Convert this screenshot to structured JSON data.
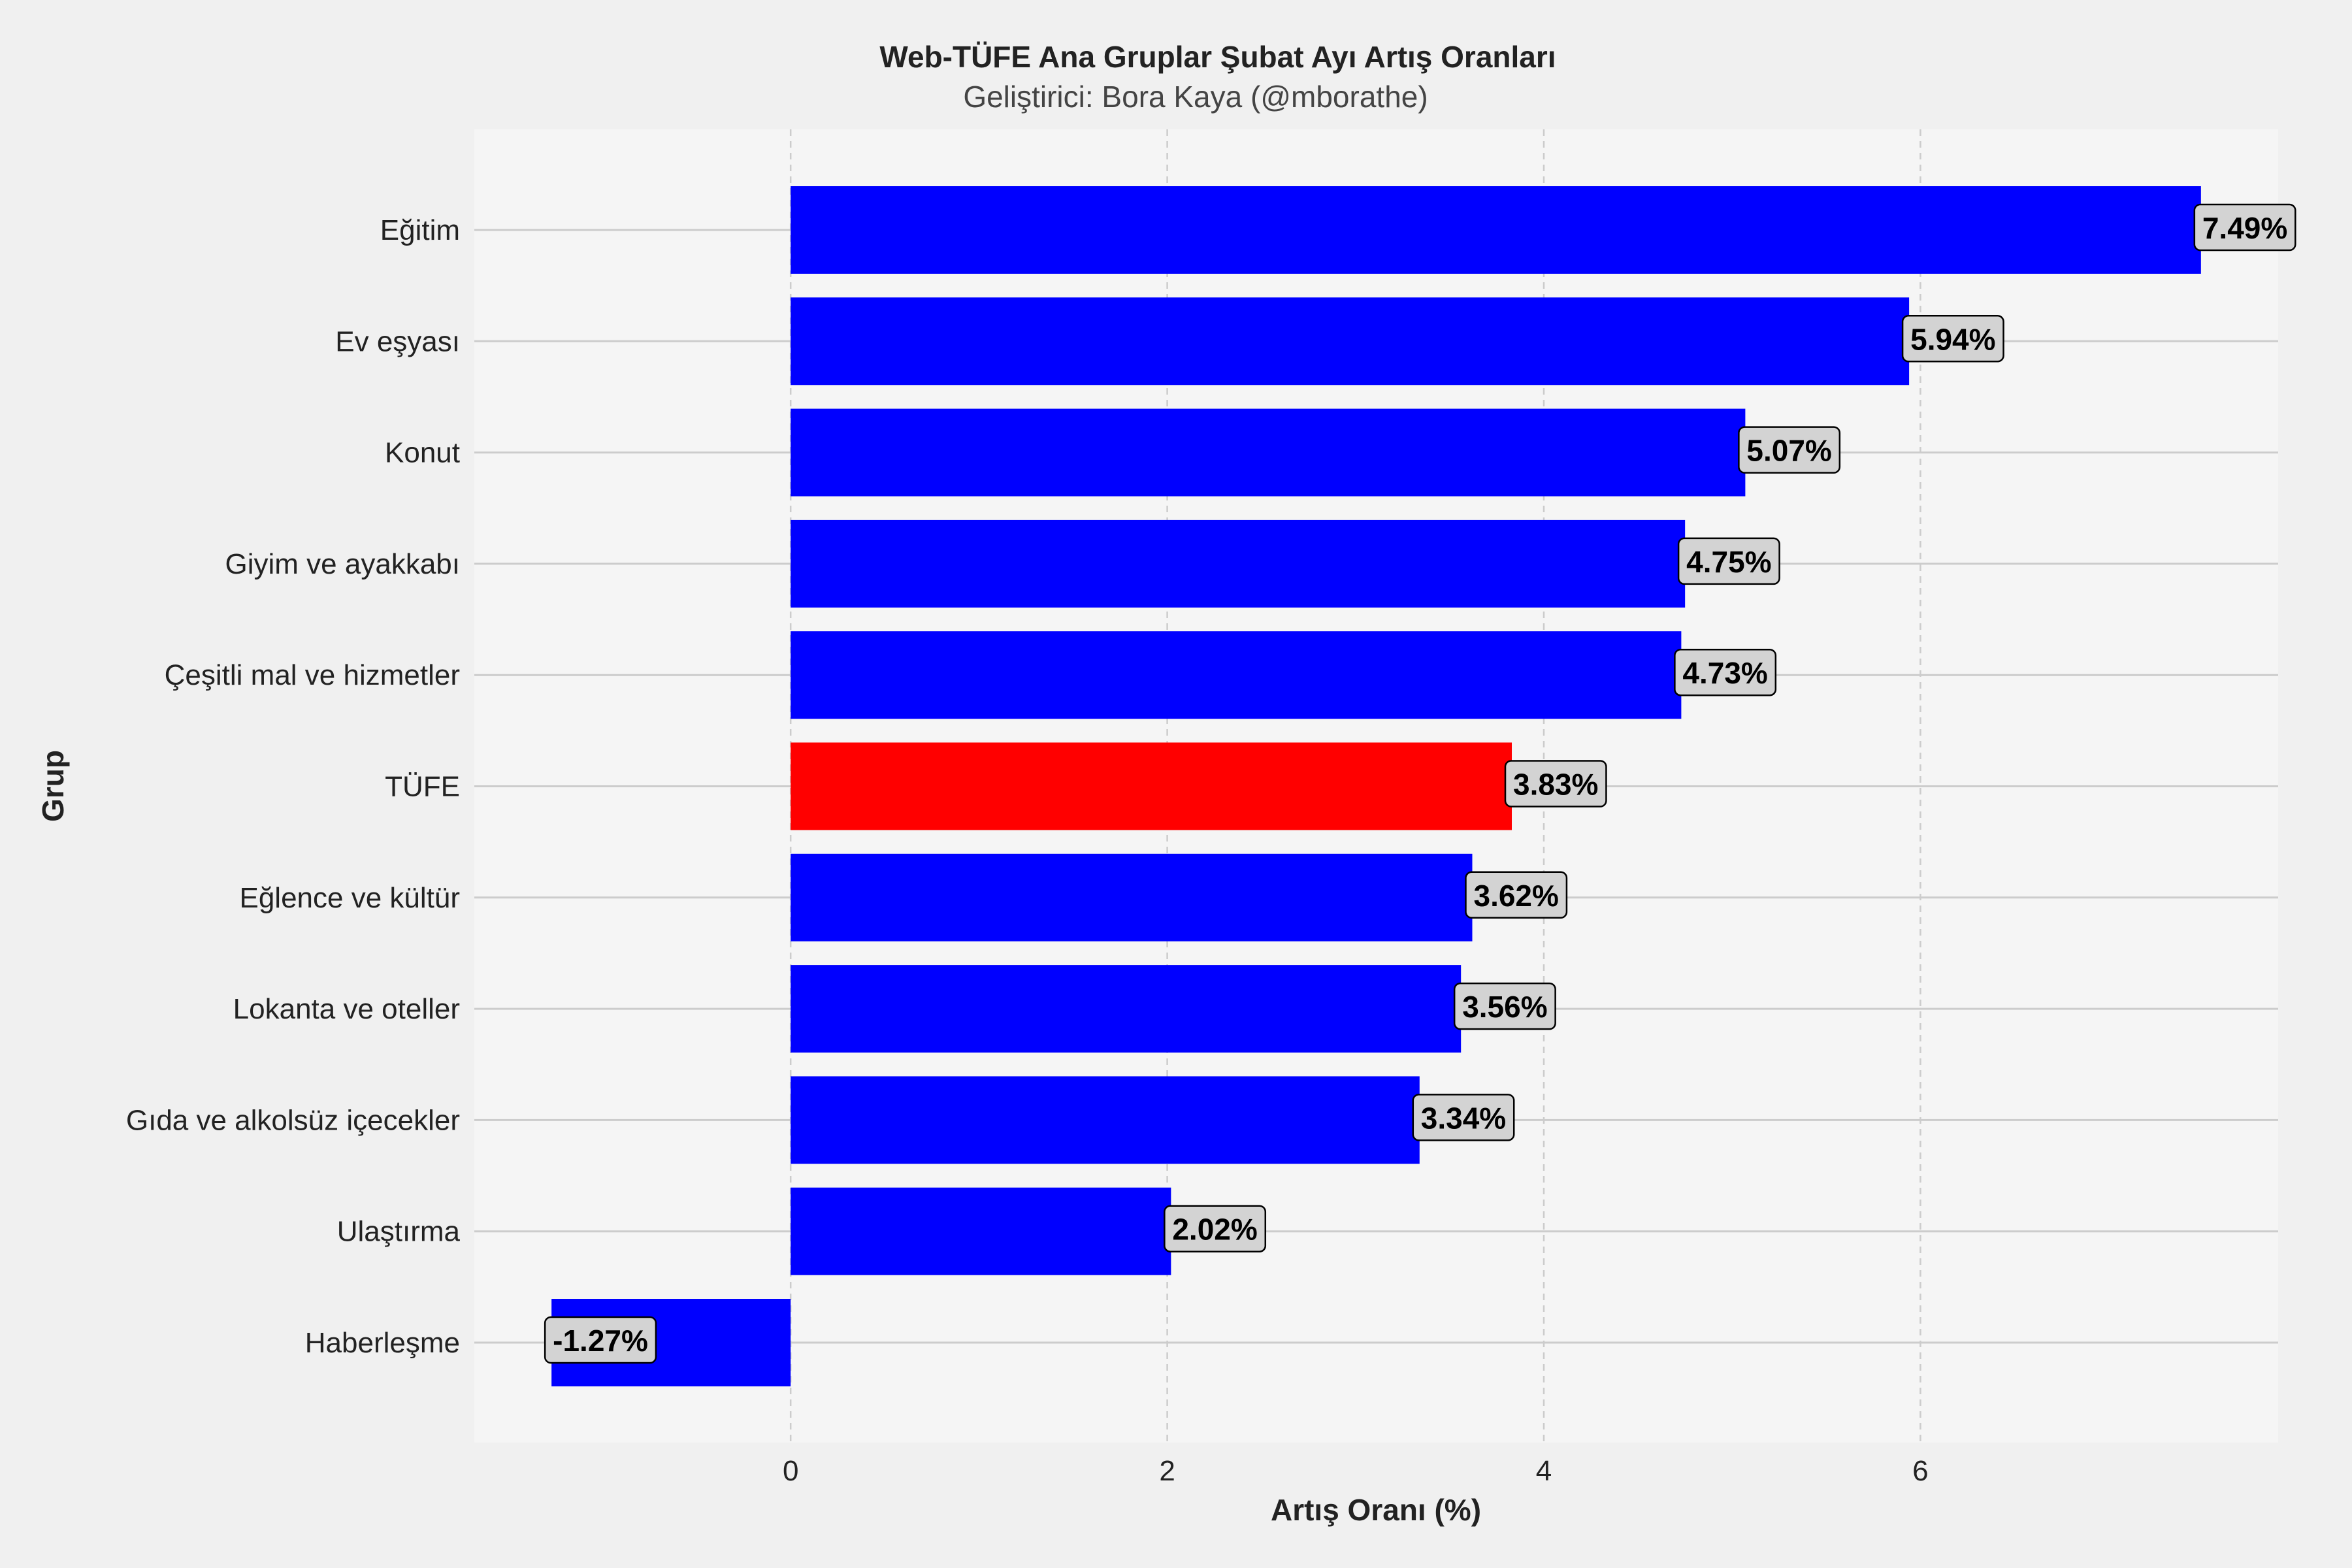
{
  "chart_data": {
    "type": "bar",
    "orientation": "horizontal",
    "title": "Web-TÜFE Ana Gruplar Şubat Ayı Artış Oranları",
    "subtitle": "Geliştirici: Bora Kaya (@mborathe)",
    "xlabel": "Artış Oranı (%)",
    "ylabel": "Grup",
    "xlim": [
      -1.68,
      7.9
    ],
    "xticks": [
      0,
      2,
      4,
      6
    ],
    "grid": true,
    "categories": [
      "Eğitim",
      "Ev eşyası",
      "Konut",
      "Giyim ve ayakkabı",
      "Çeşitli mal ve hizmetler",
      "TÜFE",
      "Eğlence ve kültür",
      "Lokanta ve oteller",
      "Gıda ve alkolsüz içecekler",
      "Ulaştırma",
      "Haberleşme"
    ],
    "values": [
      7.49,
      5.94,
      5.07,
      4.75,
      4.73,
      3.83,
      3.62,
      3.56,
      3.34,
      2.02,
      -1.27
    ],
    "value_labels": [
      "7.49%",
      "5.94%",
      "5.07%",
      "4.75%",
      "4.73%",
      "3.83%",
      "3.62%",
      "3.56%",
      "3.34%",
      "2.02%",
      "-1.27%"
    ],
    "colors": {
      "default": "#0000ff",
      "highlight": "#ff0000",
      "highlight_category": "TÜFE",
      "plot_background": "#f5f5f5",
      "figure_background": "#f0f0f0"
    }
  }
}
